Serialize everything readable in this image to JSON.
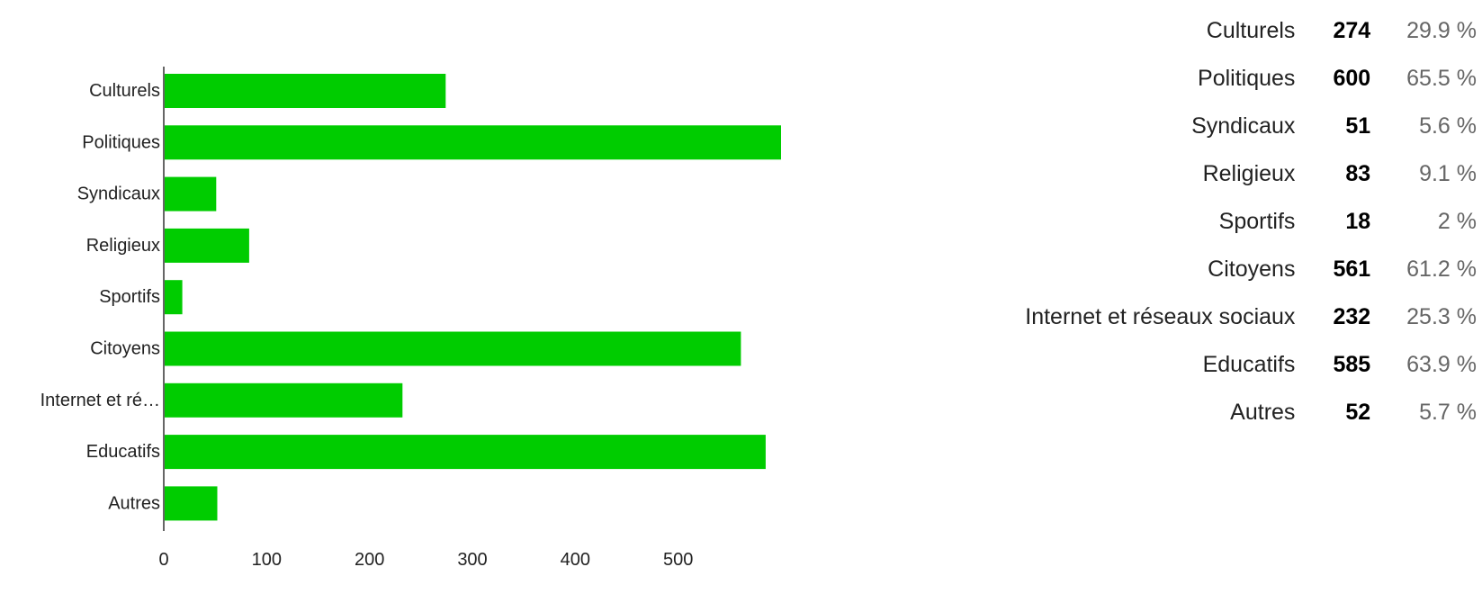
{
  "chart_data": {
    "type": "bar",
    "orientation": "horizontal",
    "categories": [
      "Culturels",
      "Politiques",
      "Syndicaux",
      "Religieux",
      "Sportifs",
      "Citoyens",
      "Internet et réseaux sociaux",
      "Educatifs",
      "Autres"
    ],
    "category_tick_labels": [
      "Culturels",
      "Politiques",
      "Syndicaux",
      "Religieux",
      "Sportifs",
      "Citoyens",
      "Internet et ré…",
      "Educatifs",
      "Autres"
    ],
    "values": [
      274,
      600,
      51,
      83,
      18,
      561,
      232,
      585,
      52
    ],
    "percentages": [
      "29.9 %",
      "65.5 %",
      "5.6 %",
      "9.1 %",
      "2 %",
      "61.2 %",
      "25.3 %",
      "63.9 %",
      "5.7 %"
    ],
    "xlim": [
      0,
      600
    ],
    "x_ticks": [
      0,
      100,
      200,
      300,
      400,
      500
    ],
    "grid": false,
    "title": "",
    "xlabel": "",
    "ylabel": ""
  },
  "colors": {
    "bar": "#00cc00",
    "axis": "#666666"
  }
}
